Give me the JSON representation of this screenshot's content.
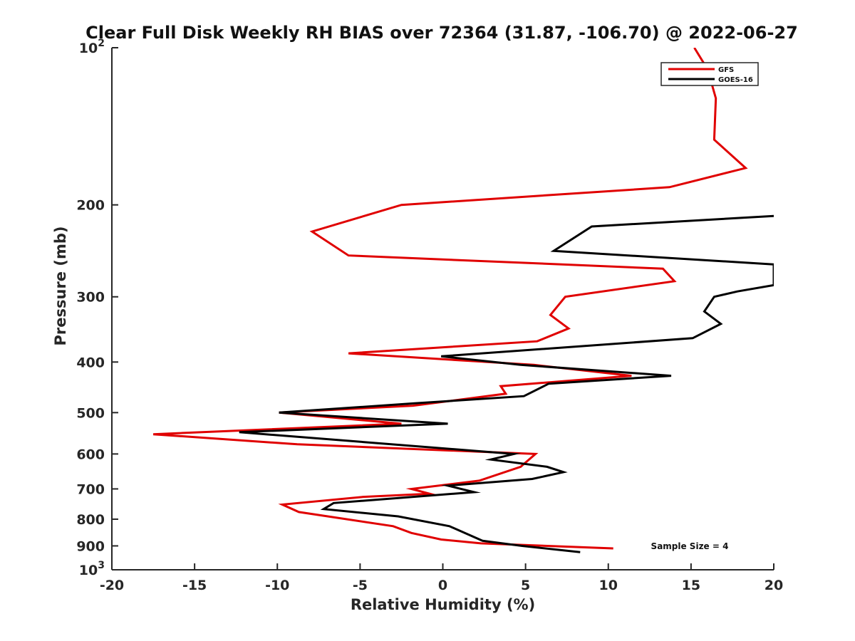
{
  "chart_data": {
    "type": "line",
    "title": "Clear Full Disk Weekly RH BIAS over 72364 (31.87, -106.70) @ 2022-06-27",
    "xlabel": "Relative Humidity (%)",
    "ylabel": "Pressure (mb)",
    "xlim": [
      -20,
      20
    ],
    "ylim": [
      100,
      1000
    ],
    "y_scale": "log",
    "y_reversed": true,
    "x_ticks": [
      "-20",
      "-15",
      "-10",
      "-5",
      "0",
      "5",
      "10",
      "15",
      "20"
    ],
    "y_ticks": [
      {
        "value": 100,
        "base": "10",
        "exp": "2"
      },
      {
        "value": 200,
        "label": "200"
      },
      {
        "value": 300,
        "label": "300"
      },
      {
        "value": 400,
        "label": "400"
      },
      {
        "value": 500,
        "label": "500"
      },
      {
        "value": 600,
        "label": "600"
      },
      {
        "value": 700,
        "label": "700"
      },
      {
        "value": 800,
        "label": "800"
      },
      {
        "value": 900,
        "label": "900"
      },
      {
        "value": 1000,
        "base": "10",
        "exp": "3"
      }
    ],
    "grid": false,
    "legend_position": "top-right",
    "annotation": "Sample Size = 4",
    "series": [
      {
        "name": "GFS",
        "color": "#e00000",
        "points": [
          {
            "x": 15.2,
            "p": 100
          },
          {
            "x": 16.0,
            "p": 110
          },
          {
            "x": 16.5,
            "p": 125
          },
          {
            "x": 16.4,
            "p": 150
          },
          {
            "x": 18.3,
            "p": 170
          },
          {
            "x": 13.7,
            "p": 185
          },
          {
            "x": -2.5,
            "p": 200
          },
          {
            "x": -7.9,
            "p": 225
          },
          {
            "x": -5.7,
            "p": 250
          },
          {
            "x": 13.3,
            "p": 265
          },
          {
            "x": 14.0,
            "p": 280
          },
          {
            "x": 7.4,
            "p": 300
          },
          {
            "x": 6.5,
            "p": 325
          },
          {
            "x": 7.6,
            "p": 345
          },
          {
            "x": 5.7,
            "p": 365
          },
          {
            "x": -5.7,
            "p": 385
          },
          {
            "x": 5.5,
            "p": 405
          },
          {
            "x": 11.4,
            "p": 425
          },
          {
            "x": 3.5,
            "p": 445
          },
          {
            "x": 3.8,
            "p": 460
          },
          {
            "x": -1.8,
            "p": 485
          },
          {
            "x": -9.9,
            "p": 500
          },
          {
            "x": -2.5,
            "p": 525
          },
          {
            "x": -17.5,
            "p": 550
          },
          {
            "x": -8.8,
            "p": 575
          },
          {
            "x": 5.6,
            "p": 600
          },
          {
            "x": 4.7,
            "p": 635
          },
          {
            "x": 2.2,
            "p": 675
          },
          {
            "x": -1.9,
            "p": 700
          },
          {
            "x": -0.8,
            "p": 715
          },
          {
            "x": -4.8,
            "p": 725
          },
          {
            "x": -9.7,
            "p": 750
          },
          {
            "x": -8.7,
            "p": 775
          },
          {
            "x": -3.0,
            "p": 825
          },
          {
            "x": -1.9,
            "p": 850
          },
          {
            "x": -0.1,
            "p": 875
          },
          {
            "x": 2.3,
            "p": 890
          },
          {
            "x": 10.3,
            "p": 910
          }
        ]
      },
      {
        "name": "GOES-16",
        "color": "#000000",
        "points": [
          {
            "x": 20.0,
            "p": 210
          },
          {
            "x": 9.0,
            "p": 220
          },
          {
            "x": 6.7,
            "p": 245
          },
          {
            "x": 20.0,
            "p": 260
          },
          {
            "x": 20.0,
            "p": 285
          },
          {
            "x": 17.8,
            "p": 293
          },
          {
            "x": 16.4,
            "p": 300
          },
          {
            "x": 15.8,
            "p": 320
          },
          {
            "x": 16.8,
            "p": 338
          },
          {
            "x": 15.1,
            "p": 360
          },
          {
            "x": -0.1,
            "p": 390
          },
          {
            "x": 4.7,
            "p": 405
          },
          {
            "x": 13.8,
            "p": 425
          },
          {
            "x": 6.4,
            "p": 440
          },
          {
            "x": 4.9,
            "p": 465
          },
          {
            "x": -1.7,
            "p": 480
          },
          {
            "x": -9.9,
            "p": 500
          },
          {
            "x": 0.3,
            "p": 525
          },
          {
            "x": -12.3,
            "p": 545
          },
          {
            "x": 4.3,
            "p": 600
          },
          {
            "x": 2.9,
            "p": 615
          },
          {
            "x": 6.3,
            "p": 635
          },
          {
            "x": 7.3,
            "p": 650
          },
          {
            "x": 5.4,
            "p": 670
          },
          {
            "x": 0.3,
            "p": 690
          },
          {
            "x": 1.9,
            "p": 710
          },
          {
            "x": -6.6,
            "p": 745
          },
          {
            "x": -7.2,
            "p": 765
          },
          {
            "x": -2.7,
            "p": 790
          },
          {
            "x": 0.4,
            "p": 825
          },
          {
            "x": 2.4,
            "p": 880
          },
          {
            "x": 4.8,
            "p": 900
          },
          {
            "x": 8.3,
            "p": 925
          }
        ]
      }
    ]
  }
}
